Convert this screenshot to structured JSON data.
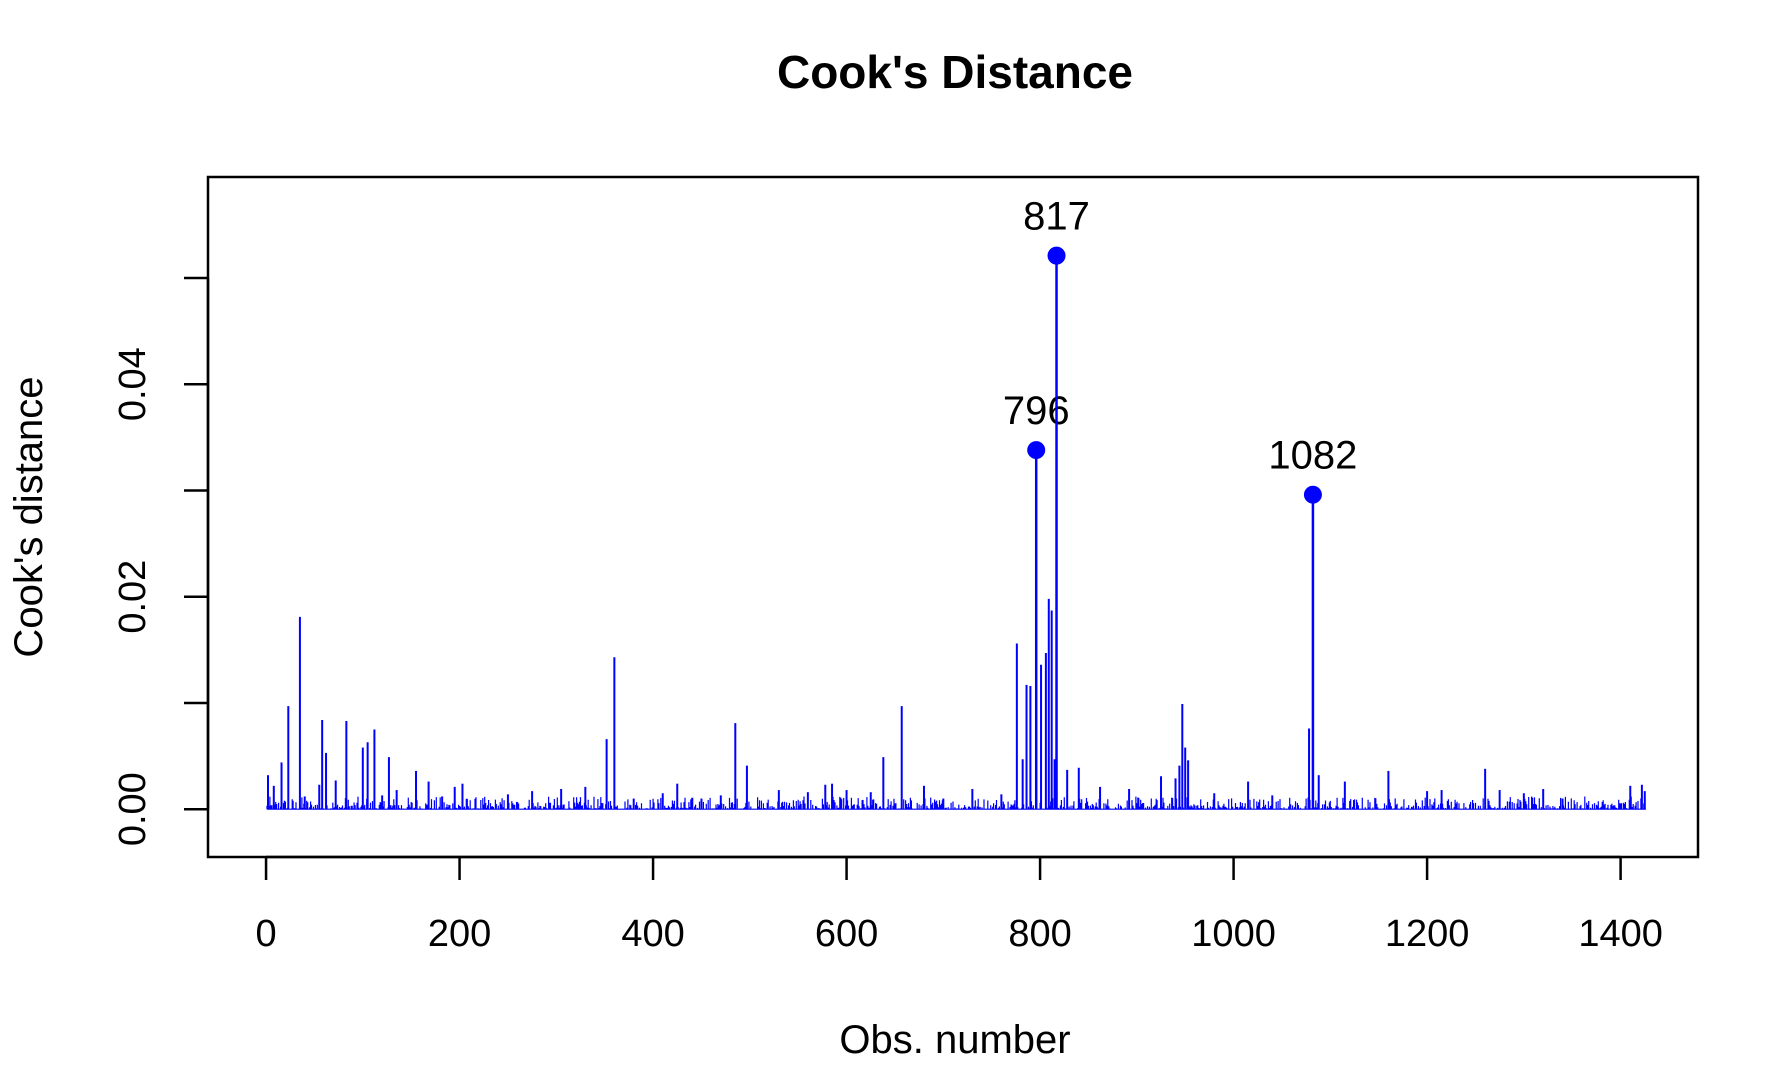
{
  "chart_data": {
    "type": "bar",
    "title": "Cook's Distance",
    "xlabel": "Obs. number",
    "ylabel": "Cook's distance",
    "xlim": [
      -60,
      1480
    ],
    "ylim": [
      -0.0045,
      0.0595
    ],
    "x_ticks": [
      0,
      200,
      400,
      600,
      800,
      1000,
      1200,
      1400
    ],
    "y_ticks": [
      0.0,
      0.01,
      0.02,
      0.03,
      0.04,
      0.05
    ],
    "y_tick_labels": [
      "0.00",
      "0.02",
      "0.04"
    ],
    "y_tick_label_values": [
      0.0,
      0.02,
      0.04
    ],
    "n_obs": 1426,
    "color": "#0000ff",
    "grid": false,
    "labeled_points": [
      {
        "x": 796,
        "y": 0.0338,
        "label": "796"
      },
      {
        "x": 817,
        "y": 0.0521,
        "label": "817"
      },
      {
        "x": 1082,
        "y": 0.0296,
        "label": "1082"
      }
    ],
    "spikes": [
      {
        "x": 2,
        "y": 0.0032
      },
      {
        "x": 8,
        "y": 0.0022
      },
      {
        "x": 16,
        "y": 0.0044
      },
      {
        "x": 23,
        "y": 0.0097
      },
      {
        "x": 35,
        "y": 0.0181
      },
      {
        "x": 40,
        "y": 0.0012
      },
      {
        "x": 55,
        "y": 0.0023
      },
      {
        "x": 58,
        "y": 0.0084
      },
      {
        "x": 62,
        "y": 0.0053
      },
      {
        "x": 72,
        "y": 0.0027
      },
      {
        "x": 83,
        "y": 0.0083
      },
      {
        "x": 100,
        "y": 0.0058
      },
      {
        "x": 105,
        "y": 0.0063
      },
      {
        "x": 112,
        "y": 0.0075
      },
      {
        "x": 120,
        "y": 0.0013
      },
      {
        "x": 127,
        "y": 0.0049
      },
      {
        "x": 135,
        "y": 0.0018
      },
      {
        "x": 155,
        "y": 0.0036
      },
      {
        "x": 168,
        "y": 0.0026
      },
      {
        "x": 182,
        "y": 0.0012
      },
      {
        "x": 195,
        "y": 0.0021
      },
      {
        "x": 203,
        "y": 0.0024
      },
      {
        "x": 250,
        "y": 0.0014
      },
      {
        "x": 275,
        "y": 0.0017
      },
      {
        "x": 305,
        "y": 0.0019
      },
      {
        "x": 330,
        "y": 0.0021
      },
      {
        "x": 352,
        "y": 0.0066
      },
      {
        "x": 360,
        "y": 0.0143
      },
      {
        "x": 380,
        "y": 0.001
      },
      {
        "x": 410,
        "y": 0.0015
      },
      {
        "x": 425,
        "y": 0.0024
      },
      {
        "x": 450,
        "y": 0.001
      },
      {
        "x": 470,
        "y": 0.0013
      },
      {
        "x": 485,
        "y": 0.0081
      },
      {
        "x": 497,
        "y": 0.0041
      },
      {
        "x": 530,
        "y": 0.0018
      },
      {
        "x": 560,
        "y": 0.0016
      },
      {
        "x": 578,
        "y": 0.0023
      },
      {
        "x": 585,
        "y": 0.0024
      },
      {
        "x": 600,
        "y": 0.0018
      },
      {
        "x": 625,
        "y": 0.0016
      },
      {
        "x": 638,
        "y": 0.0049
      },
      {
        "x": 657,
        "y": 0.0097
      },
      {
        "x": 680,
        "y": 0.0022
      },
      {
        "x": 700,
        "y": 0.001
      },
      {
        "x": 730,
        "y": 0.0019
      },
      {
        "x": 760,
        "y": 0.0014
      },
      {
        "x": 776,
        "y": 0.0156
      },
      {
        "x": 782,
        "y": 0.0047
      },
      {
        "x": 786,
        "y": 0.0117
      },
      {
        "x": 790,
        "y": 0.0116
      },
      {
        "x": 801,
        "y": 0.0136
      },
      {
        "x": 806,
        "y": 0.0147
      },
      {
        "x": 809,
        "y": 0.0198
      },
      {
        "x": 812,
        "y": 0.0187
      },
      {
        "x": 815,
        "y": 0.0047
      },
      {
        "x": 828,
        "y": 0.0037
      },
      {
        "x": 840,
        "y": 0.0039
      },
      {
        "x": 862,
        "y": 0.0021
      },
      {
        "x": 892,
        "y": 0.0019
      },
      {
        "x": 925,
        "y": 0.0031
      },
      {
        "x": 940,
        "y": 0.0029
      },
      {
        "x": 944,
        "y": 0.0041
      },
      {
        "x": 947,
        "y": 0.0099
      },
      {
        "x": 950,
        "y": 0.0058
      },
      {
        "x": 953,
        "y": 0.0046
      },
      {
        "x": 980,
        "y": 0.0015
      },
      {
        "x": 1015,
        "y": 0.0026
      },
      {
        "x": 1040,
        "y": 0.0013
      },
      {
        "x": 1078,
        "y": 0.0076
      },
      {
        "x": 1088,
        "y": 0.0032
      },
      {
        "x": 1115,
        "y": 0.0026
      },
      {
        "x": 1160,
        "y": 0.0036
      },
      {
        "x": 1200,
        "y": 0.0017
      },
      {
        "x": 1215,
        "y": 0.0018
      },
      {
        "x": 1260,
        "y": 0.0038
      },
      {
        "x": 1275,
        "y": 0.0018
      },
      {
        "x": 1300,
        "y": 0.0015
      },
      {
        "x": 1320,
        "y": 0.0019
      },
      {
        "x": 1340,
        "y": 0.001
      },
      {
        "x": 1410,
        "y": 0.0022
      },
      {
        "x": 1422,
        "y": 0.0023
      },
      {
        "x": 1425,
        "y": 0.0017
      }
    ]
  }
}
